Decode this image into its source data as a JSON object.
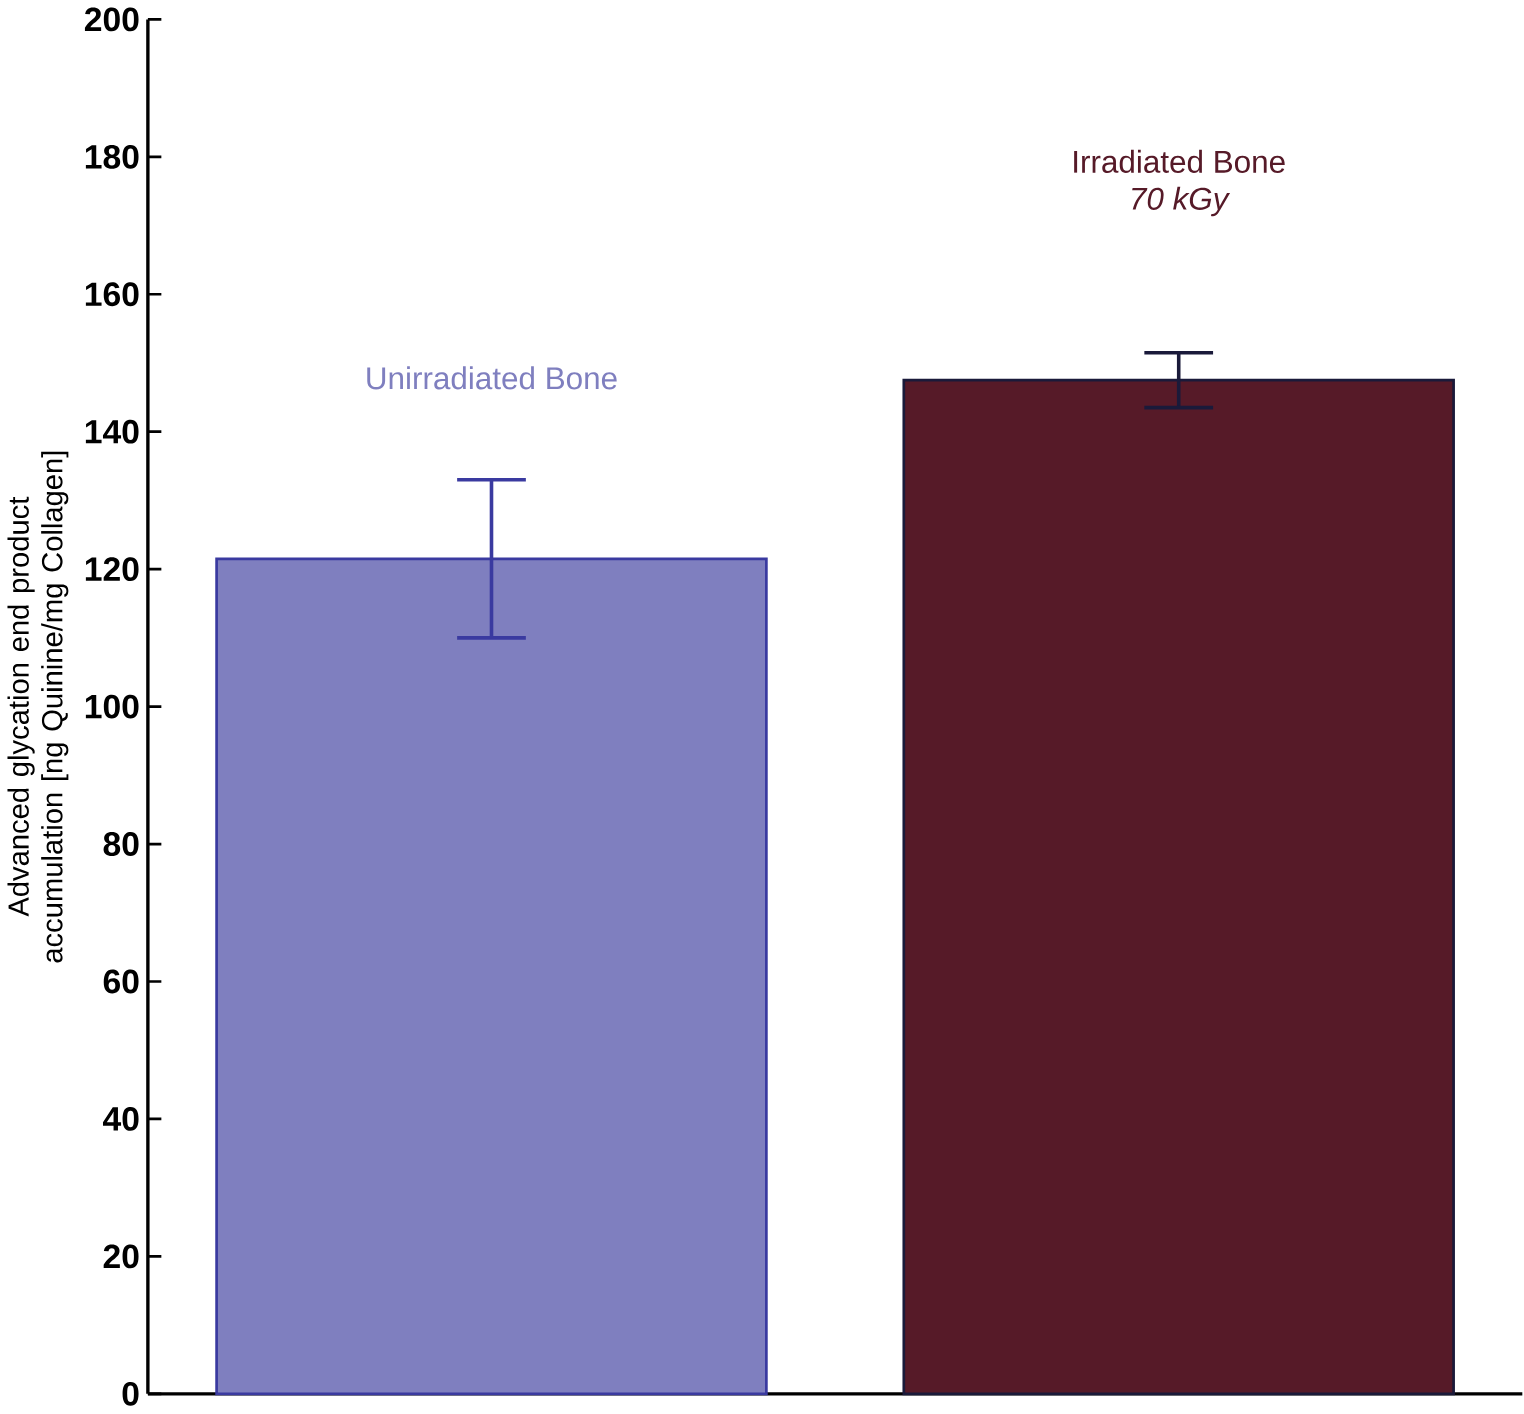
{
  "chart_data": {
    "type": "bar",
    "ylabel": "Advanced glycation end product accumulation [ng Quinine/mg Collagen]",
    "categories": [
      "Unirradiated Bone",
      "Irradiated Bone"
    ],
    "values": [
      121.5,
      147.5
    ],
    "errors": [
      [
        110,
        133
      ],
      [
        143.5,
        151.5
      ]
    ],
    "colors": [
      "#7f7fbf",
      "#561a28"
    ],
    "annotations": [
      "70 kGy"
    ],
    "ylim": [
      0,
      200
    ],
    "yticks": [
      0,
      20,
      40,
      60,
      80,
      100,
      120,
      140,
      160,
      180,
      200
    ],
    "grid": false
  }
}
